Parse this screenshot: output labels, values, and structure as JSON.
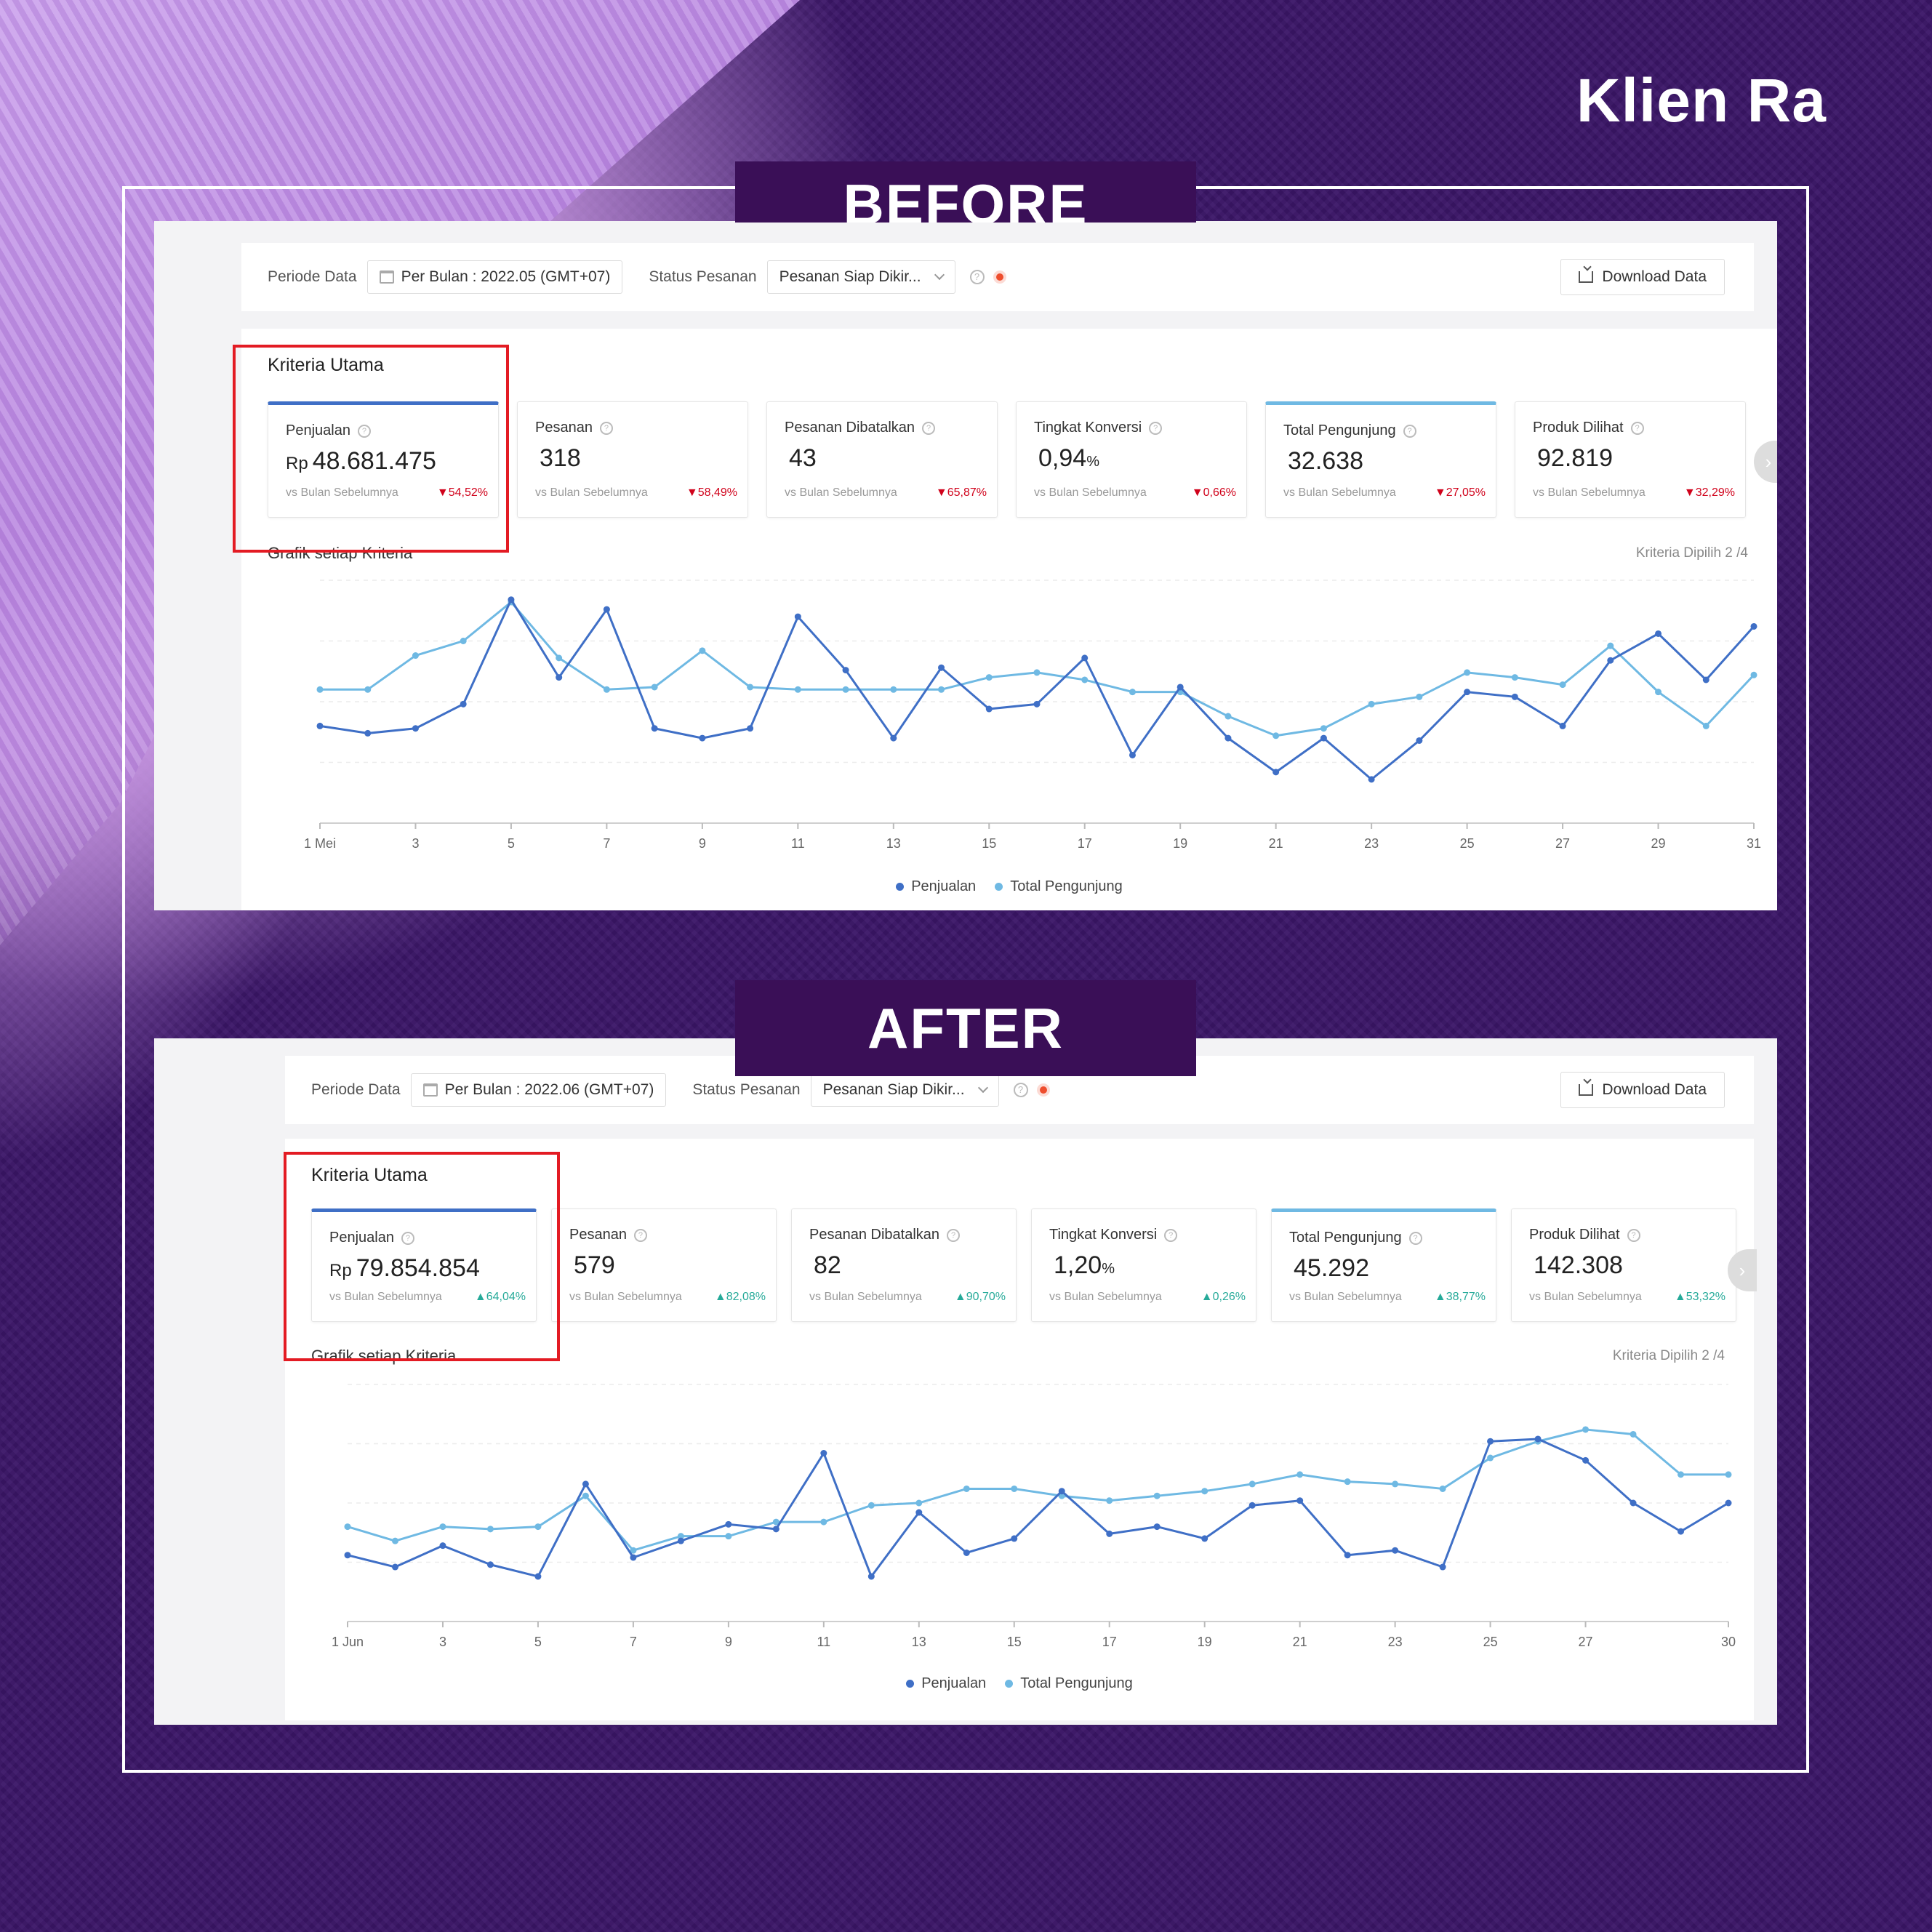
{
  "brand": "Klien Ra",
  "colors": {
    "penjualan": "#3f6fc6",
    "pengunjung": "#6fb9e3",
    "label_bg": "#3a0f57",
    "highlight": "#e31b23",
    "down": "#d0021b",
    "up": "#26aa99"
  },
  "before": {
    "label": "BEFORE",
    "filter": {
      "periode_label": "Periode Data",
      "periode_value": "Per Bulan :  2022.05 (GMT+07)",
      "status_label": "Status Pesanan",
      "status_value": "Pesanan Siap Dikir...",
      "download": "Download Data"
    },
    "section_title": "Kriteria Utama",
    "cards": [
      {
        "name": "Penjualan",
        "prefix": "Rp",
        "value": "48.681.475",
        "suffix": "",
        "sub": "vs Bulan Sebelumnya",
        "change": "▼54,52%",
        "dir": "down"
      },
      {
        "name": "Pesanan",
        "prefix": "",
        "value": "318",
        "suffix": "",
        "sub": "vs Bulan Sebelumnya",
        "change": "▼58,49%",
        "dir": "down"
      },
      {
        "name": "Pesanan Dibatalkan",
        "prefix": "",
        "value": "43",
        "suffix": "",
        "sub": "vs Bulan Sebelumnya",
        "change": "▼65,87%",
        "dir": "down"
      },
      {
        "name": "Tingkat Konversi",
        "prefix": "",
        "value": "0,94",
        "suffix": "%",
        "sub": "vs Bulan Sebelumnya",
        "change": "▼0,66%",
        "dir": "down"
      },
      {
        "name": "Total Pengunjung",
        "prefix": "",
        "value": "32.638",
        "suffix": "",
        "sub": "vs Bulan Sebelumnya",
        "change": "▼27,05%",
        "dir": "down"
      },
      {
        "name": "Produk Dilihat",
        "prefix": "",
        "value": "92.819",
        "suffix": "",
        "sub": "vs Bulan Sebelumnya",
        "change": "▼32,29%",
        "dir": "down"
      }
    ],
    "chart_title": "Grafik setiap Kriteria",
    "chart_right": "Kriteria Dipilih 2 /4",
    "legend": [
      "Penjualan",
      "Total Pengunjung"
    ],
    "chart_data": {
      "type": "line",
      "xlabel": "",
      "ylabel": "",
      "x": [
        1,
        2,
        3,
        4,
        5,
        6,
        7,
        8,
        9,
        10,
        11,
        12,
        13,
        14,
        15,
        16,
        17,
        18,
        19,
        20,
        21,
        22,
        23,
        24,
        25,
        26,
        27,
        28,
        29,
        30,
        31
      ],
      "tick_labels": [
        "1 Mei",
        "3",
        "5",
        "7",
        "9",
        "11",
        "13",
        "15",
        "17",
        "19",
        "21",
        "23",
        "25",
        "27",
        "29",
        "31"
      ],
      "tick_positions": [
        1,
        3,
        5,
        7,
        9,
        11,
        13,
        15,
        17,
        19,
        21,
        23,
        25,
        27,
        29,
        31
      ],
      "ylim": [
        0,
        100
      ],
      "series": [
        {
          "name": "Penjualan",
          "values": [
            40,
            37,
            39,
            49,
            92,
            60,
            88,
            39,
            35,
            39,
            85,
            63,
            35,
            64,
            47,
            49,
            68,
            28,
            56,
            35,
            21,
            35,
            18,
            34,
            54,
            52,
            40,
            67,
            78,
            59,
            81
          ]
        },
        {
          "name": "Total Pengunjung",
          "values": [
            55,
            55,
            69,
            75,
            91,
            68,
            55,
            56,
            71,
            56,
            55,
            55,
            55,
            55,
            60,
            62,
            59,
            54,
            54,
            44,
            36,
            39,
            49,
            52,
            62,
            60,
            57,
            73,
            54,
            40,
            61
          ]
        }
      ]
    }
  },
  "after": {
    "label": "AFTER",
    "filter": {
      "periode_label": "Periode Data",
      "periode_value": "Per Bulan :  2022.06 (GMT+07)",
      "status_label": "Status Pesanan",
      "status_value": "Pesanan Siap Dikir...",
      "download": "Download Data"
    },
    "section_title": "Kriteria Utama",
    "cards": [
      {
        "name": "Penjualan",
        "prefix": "Rp",
        "value": "79.854.854",
        "suffix": "",
        "sub": "vs Bulan Sebelumnya",
        "change": "▲64,04%",
        "dir": "up"
      },
      {
        "name": "Pesanan",
        "prefix": "",
        "value": "579",
        "suffix": "",
        "sub": "vs Bulan Sebelumnya",
        "change": "▲82,08%",
        "dir": "up"
      },
      {
        "name": "Pesanan Dibatalkan",
        "prefix": "",
        "value": "82",
        "suffix": "",
        "sub": "vs Bulan Sebelumnya",
        "change": "▲90,70%",
        "dir": "up"
      },
      {
        "name": "Tingkat Konversi",
        "prefix": "",
        "value": "1,20",
        "suffix": "%",
        "sub": "vs Bulan Sebelumnya",
        "change": "▲0,26%",
        "dir": "up"
      },
      {
        "name": "Total Pengunjung",
        "prefix": "",
        "value": "45.292",
        "suffix": "",
        "sub": "vs Bulan Sebelumnya",
        "change": "▲38,77%",
        "dir": "up"
      },
      {
        "name": "Produk Dilihat",
        "prefix": "",
        "value": "142.308",
        "suffix": "",
        "sub": "vs Bulan Sebelumnya",
        "change": "▲53,32%",
        "dir": "up"
      }
    ],
    "chart_title": "Grafik setiap Kriteria",
    "chart_right": "Kriteria Dipilih 2 /4",
    "legend": [
      "Penjualan",
      "Total Pengunjung"
    ],
    "chart_data": {
      "type": "line",
      "xlabel": "",
      "ylabel": "",
      "x": [
        1,
        2,
        3,
        4,
        5,
        6,
        7,
        8,
        9,
        10,
        11,
        12,
        13,
        14,
        15,
        16,
        17,
        18,
        19,
        20,
        21,
        22,
        23,
        24,
        25,
        26,
        27,
        28,
        29,
        30
      ],
      "tick_labels": [
        "1 Jun",
        "3",
        "5",
        "7",
        "9",
        "11",
        "13",
        "15",
        "17",
        "19",
        "21",
        "23",
        "25",
        "27",
        "30"
      ],
      "tick_positions": [
        1,
        3,
        5,
        7,
        9,
        11,
        13,
        15,
        17,
        19,
        21,
        23,
        25,
        27,
        30
      ],
      "ylim": [
        0,
        100
      ],
      "series": [
        {
          "name": "Penjualan",
          "values": [
            28,
            23,
            32,
            24,
            19,
            58,
            27,
            34,
            41,
            39,
            71,
            19,
            46,
            29,
            35,
            55,
            37,
            40,
            35,
            49,
            51,
            28,
            30,
            23,
            76,
            77,
            68,
            50,
            38,
            50
          ]
        },
        {
          "name": "Total Pengunjung",
          "values": [
            40,
            34,
            40,
            39,
            40,
            53,
            30,
            36,
            36,
            42,
            42,
            49,
            50,
            56,
            56,
            53,
            51,
            53,
            55,
            58,
            62,
            59,
            58,
            56,
            69,
            76,
            81,
            79,
            62,
            62
          ]
        }
      ]
    }
  }
}
